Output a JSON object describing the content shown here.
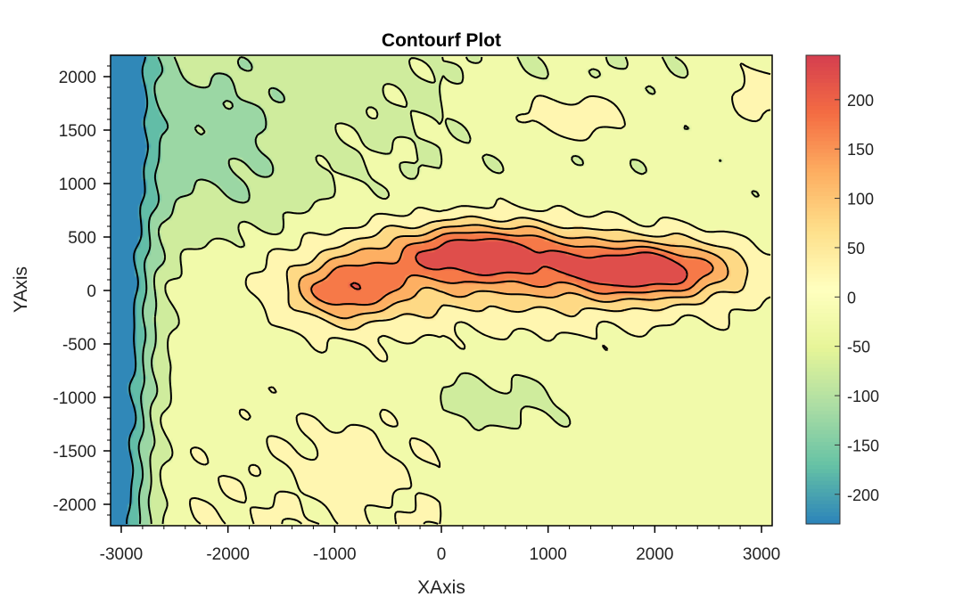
{
  "chart_data": {
    "type": "contourf",
    "title": "Contourf Plot",
    "xlabel": "XAxis",
    "ylabel": "YAxis",
    "xlim": [
      -3100,
      3100
    ],
    "ylim": [
      -2200,
      2200
    ],
    "x_ticks": [
      "-3000",
      "-2000",
      "-1000",
      "0",
      "1000",
      "2000",
      "3000"
    ],
    "x_tick_values": [
      -3000,
      -2000,
      -1000,
      0,
      1000,
      2000,
      3000
    ],
    "y_ticks": [
      "2000",
      "1500",
      "1000",
      "500",
      "0",
      "-500",
      "-1000",
      "-1500",
      "-2000"
    ],
    "y_tick_values": [
      2000,
      1500,
      1000,
      500,
      0,
      -500,
      -1000,
      -1500,
      -2000
    ],
    "colorbar": {
      "ticks": [
        "200",
        "150",
        "100",
        "50",
        "0",
        "-50",
        "-100",
        "-150",
        "-200"
      ],
      "tick_values": [
        200,
        150,
        100,
        50,
        0,
        -50,
        -100,
        -150,
        -200
      ],
      "range": [
        -230,
        245
      ],
      "colormap": "Spectral_r",
      "colors": [
        "#2b83ba",
        "#66c2a5",
        "#abdda4",
        "#e6f598",
        "#ffffbf",
        "#fee08b",
        "#fdae61",
        "#f46d43",
        "#d53e4f"
      ]
    },
    "levels": [
      -200,
      -150,
      -100,
      -50,
      0,
      50,
      100,
      150,
      200
    ],
    "field": {
      "description": "Elongated ridge of high values along y≈0–300 from x≈-1300 to x≈2600 peaking near (2000,200); lowest values toward the left edge (x≈-3000) and lower-left corner.",
      "features": [
        {
          "x": 2000,
          "y": 200,
          "value": 220
        },
        {
          "x": 400,
          "y": 400,
          "value": 215
        },
        {
          "x": -900,
          "y": 0,
          "value": 180
        },
        {
          "x": 1200,
          "y": 1600,
          "value": 60
        },
        {
          "x": -3000,
          "y": 1500,
          "value": -210
        },
        {
          "x": -3000,
          "y": -2100,
          "value": -220
        },
        {
          "x": 500,
          "y": -1100,
          "value": -120
        }
      ]
    }
  }
}
